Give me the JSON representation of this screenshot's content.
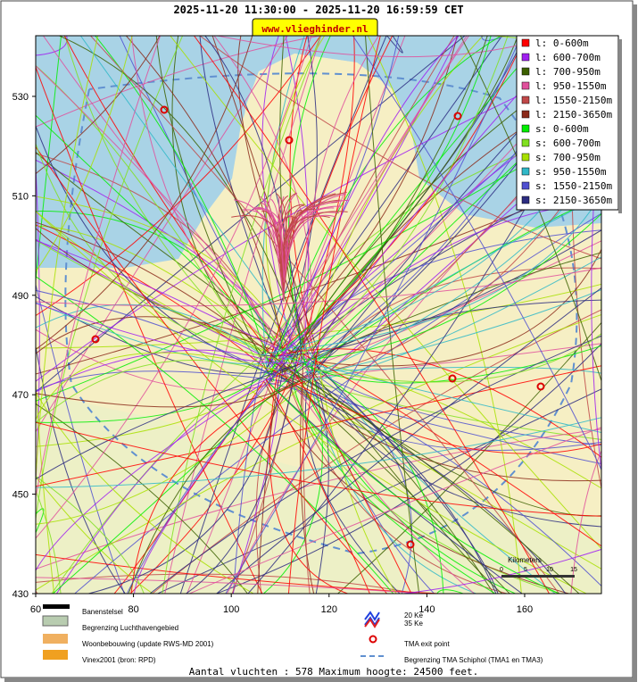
{
  "header": {
    "title": "2025-11-20 11:30:00 - 2025-11-20 16:59:59 CET",
    "badge": "www.vlieghinder.nl"
  },
  "map": {
    "xlim": [
      60,
      175.7
    ],
    "ylim": [
      430,
      542.2
    ],
    "xticks": [
      60,
      80,
      100,
      120,
      140,
      160
    ],
    "yticks": [
      430,
      450,
      470,
      490,
      510,
      530
    ]
  },
  "legend": [
    {
      "label": "l: 0-600m",
      "color": "#ff0000"
    },
    {
      "label": "l: 600-700m",
      "color": "#a020f0"
    },
    {
      "label": "l: 700-950m",
      "color": "#3c6000"
    },
    {
      "label": "l: 950-1550m",
      "color": "#e0509c"
    },
    {
      "label": "l: 1550-2150m",
      "color": "#c04848"
    },
    {
      "label": "l: 2150-3650m",
      "color": "#8b2a1a"
    },
    {
      "label": "s: 0-600m",
      "color": "#00ee00"
    },
    {
      "label": "s: 600-700m",
      "color": "#80e020"
    },
    {
      "label": "s: 700-950m",
      "color": "#a8e000"
    },
    {
      "label": "s: 950-1550m",
      "color": "#30b8c8"
    },
    {
      "label": "s: 1550-2150m",
      "color": "#5050d0"
    },
    {
      "label": "s: 2150-3650m",
      "color": "#2c2c80"
    }
  ],
  "scale_bar": {
    "title": "Kilometers",
    "ticks": [
      "0",
      "5",
      "10",
      "15"
    ]
  },
  "map_legend": {
    "items": [
      "Banenstelsel",
      "Begrenzing Luchthavengebied",
      "Woonbebouwing (update RWS-MD 2001)",
      "Vinex2001 (bron: RPD)"
    ],
    "wind": [
      "20 Ke",
      "35 Ke"
    ],
    "tma_exit": "TMA exit point",
    "tma_border": "Begrenzing TMA Schiphol  (TMA1 en TMA3)"
  },
  "footer": "Aantal vluchten : 578 Maximum hoogte: 24500 feet."
}
